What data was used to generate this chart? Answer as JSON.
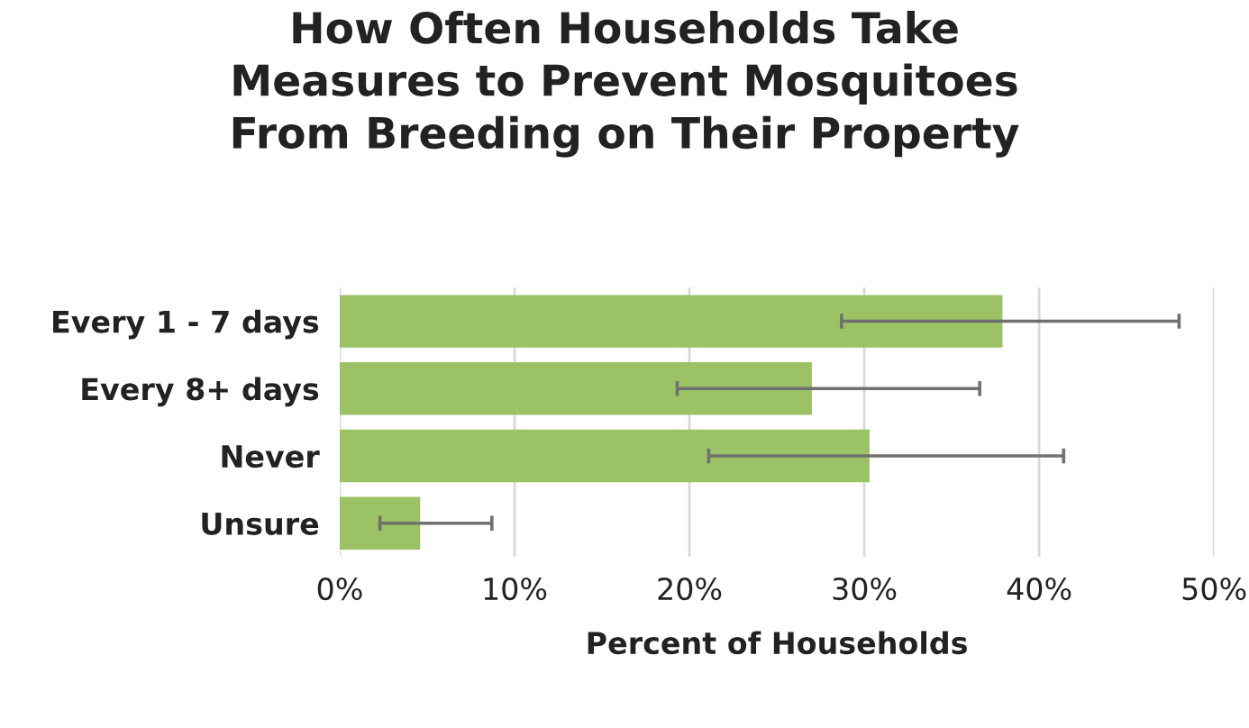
{
  "chart_data": {
    "type": "bar",
    "orientation": "horizontal",
    "title": "How Often Households Take\nMeasures to Prevent Mosquitoes\nFrom Breeding on Their Property",
    "xlabel": "Percent of Households",
    "categories": [
      "Every 1 - 7 days",
      "Every 8+ days",
      "Never",
      "Unsure"
    ],
    "values": [
      37.9,
      27.0,
      30.3,
      4.6
    ],
    "errors": [
      [
        28.7,
        48.0
      ],
      [
        19.3,
        36.6
      ],
      [
        21.1,
        41.4
      ],
      [
        2.3,
        8.7
      ]
    ],
    "color": "#9bc264",
    "xlim": [
      0,
      50
    ],
    "xticks": [
      {
        "value": 0,
        "label": "0%"
      },
      {
        "value": 10,
        "label": "10%"
      },
      {
        "value": 20,
        "label": "20%"
      },
      {
        "value": 30,
        "label": "30%"
      },
      {
        "value": 40,
        "label": "40%"
      },
      {
        "value": 50,
        "label": "50%"
      }
    ],
    "grid": "x"
  }
}
